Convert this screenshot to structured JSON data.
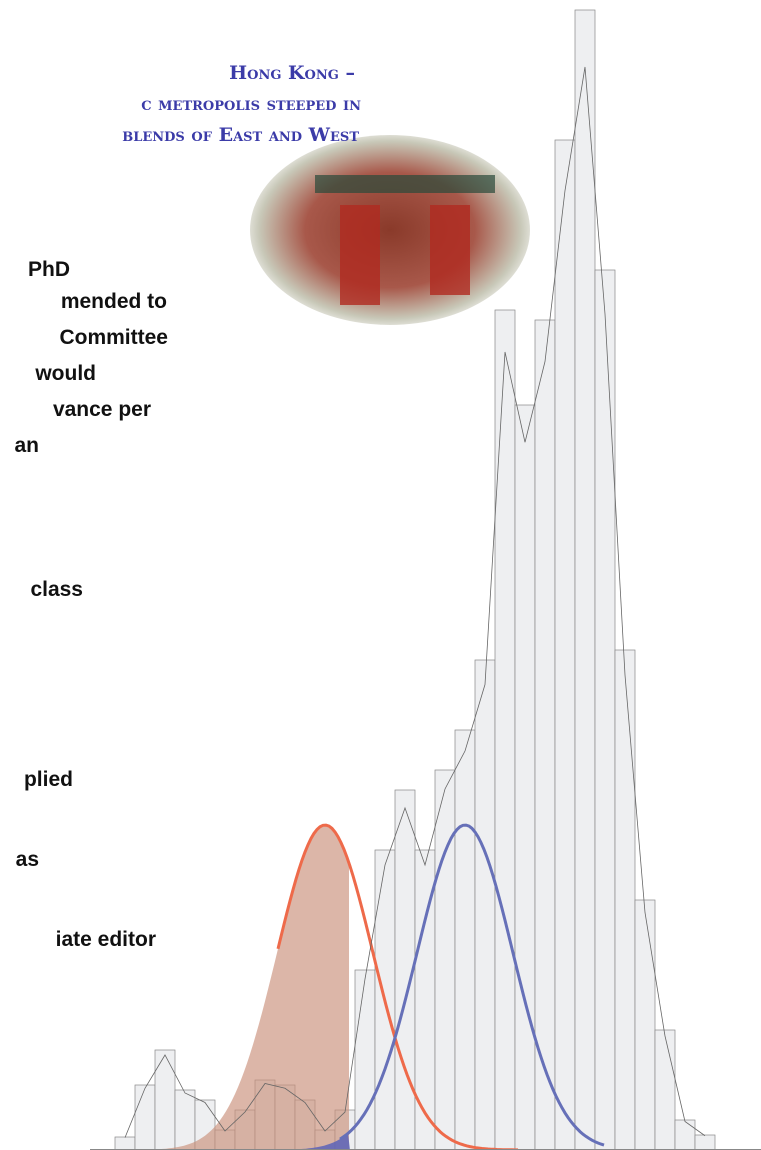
{
  "header": {
    "lines": [
      "Hong Kong –",
      "c metropolis steeped in",
      "blends of East and West"
    ]
  },
  "body_lines": [
    "PhD",
    "mended to",
    "Committee",
    "would",
    "vance per",
    "an",
    "class",
    "plied",
    "as",
    "iate editor"
  ],
  "chart_data": {
    "type": "histogram",
    "color": "#eeeff1",
    "bins": [
      115,
      135,
      155,
      175,
      195,
      215,
      235,
      255,
      275,
      295,
      315,
      335,
      355,
      375,
      395,
      415,
      435,
      455,
      475,
      495,
      515,
      535,
      555,
      575,
      595,
      615,
      635,
      655,
      675,
      695,
      715
    ],
    "values": [
      13,
      65,
      100,
      60,
      50,
      20,
      40,
      70,
      65,
      50,
      20,
      40,
      180,
      300,
      360,
      300,
      380,
      420,
      490,
      840,
      745,
      830,
      1010,
      1140,
      880,
      500,
      250,
      120,
      30,
      15
    ]
  }
}
